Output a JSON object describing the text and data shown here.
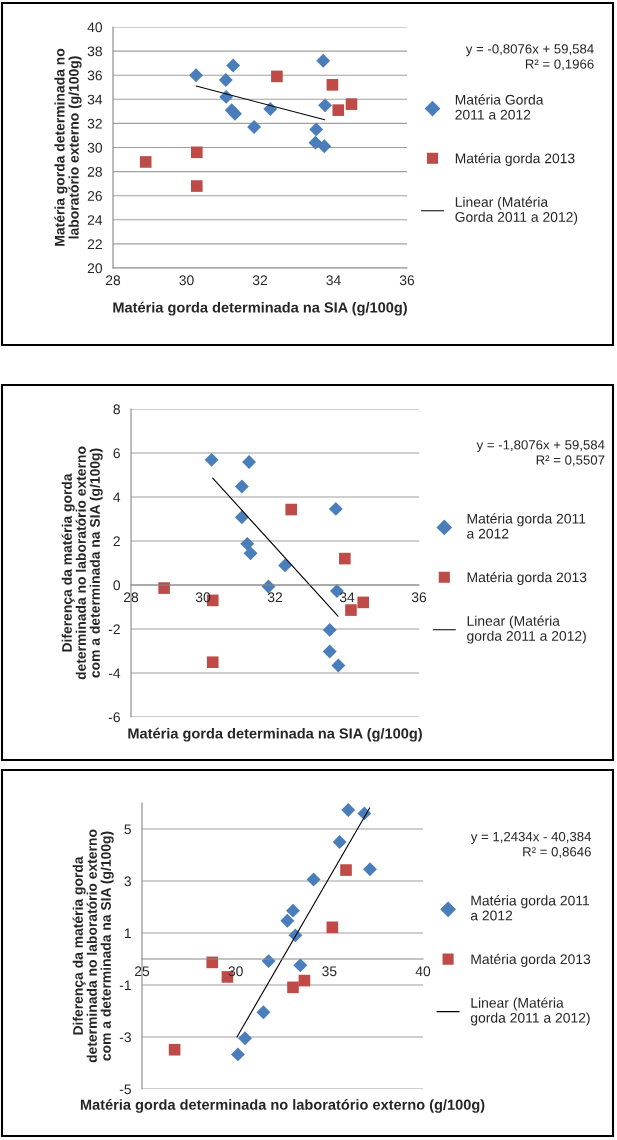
{
  "chart_data": [
    {
      "type": "scatter",
      "xlabel": "Matéria gorda determinada na SIA (g/100g)",
      "ylabel": "Matéria gorda determinada no\nlaboratório externo (g/100g)",
      "xlim": [
        28,
        36
      ],
      "xticks": [
        28,
        30,
        32,
        34,
        36
      ],
      "ylim": [
        20,
        40
      ],
      "yticks": [
        20,
        22,
        24,
        26,
        28,
        30,
        32,
        34,
        36,
        38,
        40
      ],
      "grid": "y",
      "legend": "right",
      "annotations": [
        "y = -0,8076x + 59,584\nR² = 0,1966"
      ],
      "series": [
        {
          "name": "Matéria Gorda\n2011 a 2012",
          "type": "scatter",
          "marker": "diamond",
          "color": "#4a7ebb",
          "x": [
            30.26,
            31.07,
            31.27,
            31.08,
            31.23,
            31.32,
            31.84,
            32.28,
            33.72,
            33.77,
            33.53,
            33.51,
            33.75
          ],
          "values": [
            36.0,
            35.6,
            36.8,
            34.2,
            33.1,
            32.8,
            31.7,
            33.2,
            37.2,
            33.5,
            31.5,
            30.4,
            30.1
          ]
        },
        {
          "name": "Matéria gorda 2013",
          "type": "scatter",
          "marker": "square",
          "color": "#be4b48",
          "x": [
            28.89,
            30.28,
            30.28,
            32.46,
            33.97,
            34.13,
            34.49
          ],
          "values": [
            28.8,
            29.6,
            26.8,
            35.9,
            35.2,
            33.1,
            33.6
          ]
        },
        {
          "name": "Linear (Matéria\nGorda 2011 a 2012)",
          "type": "line",
          "marker": "none",
          "line_style": "solid",
          "color": "#000000",
          "x": [
            30.26,
            33.76
          ],
          "values": [
            35.1,
            32.3
          ]
        }
      ]
    },
    {
      "type": "scatter",
      "xlabel": "Matéria gorda determinada na SIA (g/100g)",
      "ylabel": "Diferença da matéria gorda\ndeterminada no laboratório externo\ncom a determinada na SIA (g/100g)",
      "xlim": [
        28,
        36
      ],
      "xticks": [
        28,
        30,
        32,
        34,
        36
      ],
      "ylim": [
        -6,
        8
      ],
      "yticks": [
        -6,
        -4,
        -2,
        0,
        2,
        4,
        6,
        8
      ],
      "grid": "y",
      "legend": "right",
      "annotations": [
        "y = -1,8076x + 59,584\nR² = 0,5507"
      ],
      "series": [
        {
          "name": "Matéria gorda 2011\na 2012",
          "type": "scatter",
          "marker": "diamond",
          "color": "#4a7ebb",
          "x": [
            30.24,
            31.28,
            31.08,
            31.08,
            31.23,
            31.32,
            31.82,
            32.28,
            33.69,
            33.72,
            33.52,
            33.52,
            33.76
          ],
          "values": [
            5.69,
            5.59,
            4.48,
            3.08,
            1.87,
            1.44,
            -0.07,
            0.89,
            3.46,
            -0.27,
            -2.04,
            -3.02,
            -3.66
          ]
        },
        {
          "name": "Matéria gorda 2013",
          "type": "scatter",
          "marker": "square",
          "color": "#be4b48",
          "x": [
            28.92,
            30.27,
            30.27,
            32.45,
            33.94,
            34.11,
            34.45
          ],
          "values": [
            -0.14,
            -0.7,
            -3.51,
            3.43,
            1.2,
            -1.14,
            -0.79
          ]
        },
        {
          "name": "Linear (Matéria\ngorda 2011 a 2012)",
          "type": "line",
          "marker": "none",
          "line_style": "solid",
          "color": "#000000",
          "x": [
            30.27,
            33.75
          ],
          "values": [
            4.86,
            -1.42
          ]
        }
      ]
    },
    {
      "type": "scatter",
      "xlabel": "Matéria gorda determinada no laboratório externo (g/100g)",
      "ylabel": "Diferença da matéria gorda\ndeterminada no laboratório externo\ncom a determinada na SIA (g/100g)",
      "xlim": [
        25,
        40
      ],
      "xticks": [
        25,
        30,
        35,
        40
      ],
      "ylim": [
        -5,
        6
      ],
      "yticks": [
        -5,
        -3,
        -1,
        1,
        3,
        5
      ],
      "grid": "y",
      "legend": "right",
      "annotations": [
        "y = 1,2434x - 40,384\nR² = 0,8646"
      ],
      "series": [
        {
          "name": "Matéria gorda 2011\na 2012",
          "type": "scatter",
          "marker": "diamond",
          "color": "#4a7ebb",
          "x": [
            36.01,
            36.87,
            35.55,
            37.17,
            34.16,
            33.06,
            32.76,
            33.19,
            31.76,
            33.45,
            31.48,
            30.5,
            30.12
          ],
          "values": [
            5.73,
            5.6,
            4.5,
            3.45,
            3.06,
            1.86,
            1.47,
            0.91,
            -0.08,
            -0.24,
            -2.05,
            -3.05,
            -3.67
          ]
        },
        {
          "name": "Matéria gorda 2013",
          "type": "scatter",
          "marker": "square",
          "color": "#be4b48",
          "x": [
            28.75,
            29.56,
            26.74,
            35.89,
            35.16,
            33.06,
            33.67
          ],
          "values": [
            -0.13,
            -0.69,
            -3.49,
            3.42,
            1.22,
            -1.09,
            -0.83
          ]
        },
        {
          "name": "Linear (Matéria\ngorda 2011 a 2012)",
          "type": "line",
          "marker": "none",
          "line_style": "solid",
          "color": "#000000",
          "x": [
            30.07,
            37.15
          ],
          "values": [
            -3.0,
            5.81
          ]
        }
      ]
    }
  ]
}
